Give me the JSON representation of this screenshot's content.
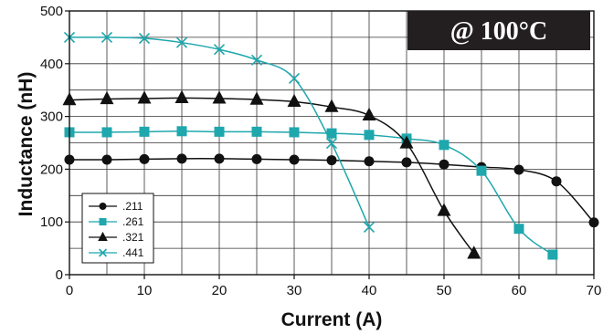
{
  "chart_data": {
    "type": "line",
    "title": "",
    "annotation": "@ 100°C",
    "xlabel": "Current (A)",
    "ylabel": "Inductance (nH)",
    "xlim": [
      0,
      70
    ],
    "ylim": [
      0,
      500
    ],
    "xticks": [
      0,
      10,
      20,
      30,
      40,
      50,
      60,
      70
    ],
    "yticks": [
      0,
      100,
      200,
      300,
      400,
      500
    ],
    "x_tick_labels": [
      "0",
      "10",
      "20",
      "30",
      "40",
      "50",
      "60",
      "70"
    ],
    "y_tick_labels": [
      "0",
      "100",
      "200",
      "300",
      "400",
      "500"
    ],
    "grid": true,
    "grid_x_step": 5,
    "grid_y_step": 50,
    "legend_position": "bottom-left",
    "series": [
      {
        "name": ".211",
        "marker": "circle",
        "color": "#111111",
        "points": [
          [
            0,
            218
          ],
          [
            5,
            218
          ],
          [
            10,
            219
          ],
          [
            15,
            220
          ],
          [
            20,
            220
          ],
          [
            25,
            219
          ],
          [
            30,
            218
          ],
          [
            35,
            217
          ],
          [
            40,
            215
          ],
          [
            45,
            213
          ],
          [
            50,
            209
          ],
          [
            55,
            204
          ],
          [
            60,
            199
          ],
          [
            65,
            177
          ],
          [
            70,
            99
          ]
        ]
      },
      {
        "name": ".261",
        "marker": "square",
        "color": "#1ea7ad",
        "points": [
          [
            0,
            270
          ],
          [
            5,
            270
          ],
          [
            10,
            271
          ],
          [
            15,
            272
          ],
          [
            20,
            271
          ],
          [
            25,
            271
          ],
          [
            30,
            270
          ],
          [
            35,
            268
          ],
          [
            40,
            265
          ],
          [
            45,
            258
          ],
          [
            50,
            246
          ],
          [
            55,
            197
          ],
          [
            60,
            87
          ],
          [
            64.5,
            38
          ]
        ]
      },
      {
        "name": ".321",
        "marker": "triangle",
        "color": "#111111",
        "points": [
          [
            0,
            331
          ],
          [
            5,
            333
          ],
          [
            10,
            334
          ],
          [
            15,
            335
          ],
          [
            20,
            334
          ],
          [
            25,
            332
          ],
          [
            30,
            328
          ],
          [
            35,
            318
          ],
          [
            40,
            302
          ],
          [
            45,
            249
          ],
          [
            50,
            121
          ],
          [
            54,
            40
          ]
        ]
      },
      {
        "name": ".441",
        "marker": "x",
        "color": "#1ea7ad",
        "points": [
          [
            0,
            450
          ],
          [
            5,
            450
          ],
          [
            10,
            448
          ],
          [
            15,
            440
          ],
          [
            20,
            427
          ],
          [
            25,
            407
          ],
          [
            30,
            372
          ],
          [
            35,
            249
          ],
          [
            40,
            90
          ]
        ]
      }
    ]
  },
  "colors": {
    "background": "#ffffff",
    "grid": "#333333",
    "badge_background": "#231f20",
    "badge_text": "#ffffff"
  }
}
